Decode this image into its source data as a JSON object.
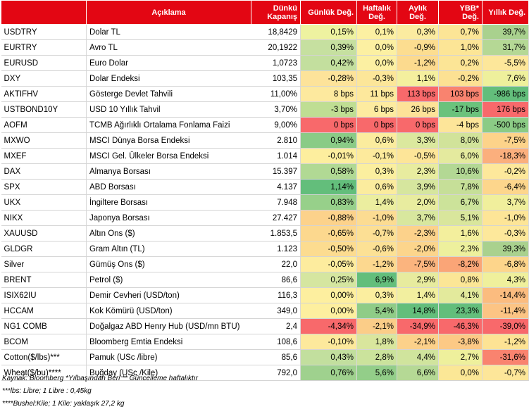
{
  "headers": {
    "code": "",
    "description": "Açıklama",
    "close_line1": "Dünkü",
    "close_line2": "Kapanış",
    "daily": "Günlük Değ.",
    "weekly_line1": "Haftalık",
    "weekly_line2": "Değ.",
    "monthly_line1": "Aylık",
    "monthly_line2": "Değ.",
    "ytd": "YBB* Değ.",
    "yearly": "Yıllık Değ."
  },
  "rows": [
    {
      "code": "USDTRY",
      "desc": "Dolar TL",
      "close": "18,8429",
      "daily": "0,15%",
      "weekly": "0,1%",
      "monthly": "0,3%",
      "ytd": "0,7%",
      "yearly": "39,7%"
    },
    {
      "code": "EURTRY",
      "desc": "Avro TL",
      "close": "20,1922",
      "daily": "0,39%",
      "weekly": "0,0%",
      "monthly": "-0,9%",
      "ytd": "1,0%",
      "yearly": "31,7%"
    },
    {
      "code": "EURUSD",
      "desc": "Euro Dolar",
      "close": "1,0723",
      "daily": "0,42%",
      "weekly": "0,0%",
      "monthly": "-1,2%",
      "ytd": "0,2%",
      "yearly": "-5,5%"
    },
    {
      "code": "DXY",
      "desc": "Dolar Endeksi",
      "close": "103,35",
      "daily": "-0,28%",
      "weekly": "-0,3%",
      "monthly": "1,1%",
      "ytd": "-0,2%",
      "yearly": "7,6%"
    },
    {
      "code": "AKTIFHV",
      "desc": "Gösterge Devlet Tahvili",
      "close": "11,00%",
      "daily": "8 bps",
      "weekly": "11 bps",
      "monthly": "113 bps",
      "ytd": "103 bps",
      "yearly": "-986 bps"
    },
    {
      "code": "USTBOND10Y",
      "desc": "USD 10 Yıllık Tahvil",
      "close": "3,70%",
      "daily": "-3 bps",
      "weekly": "6 bps",
      "monthly": "26 bps",
      "ytd": "-17 bps",
      "yearly": "176 bps"
    },
    {
      "code": "AOFM",
      "desc": "TCMB Ağırlıklı Ortalama Fonlama Faizi",
      "close": "9,00%",
      "daily": "0 bps",
      "weekly": "0 bps",
      "monthly": "0 bps",
      "ytd": "-4 bps",
      "yearly": "-500 bps"
    },
    {
      "code": "MXWO",
      "desc": "MSCI Dünya Borsa Endeksi",
      "close": "2.810",
      "daily": "0,94%",
      "weekly": "0,6%",
      "monthly": "3,3%",
      "ytd": "8,0%",
      "yearly": "-7,5%"
    },
    {
      "code": "MXEF",
      "desc": "MSCI Gel. Ülkeler Borsa Endeksi",
      "close": "1.014",
      "daily": "-0,01%",
      "weekly": "-0,1%",
      "monthly": "-0,5%",
      "ytd": "6,0%",
      "yearly": "-18,3%"
    },
    {
      "code": "DAX",
      "desc": "Almanya Borsası",
      "close": "15.397",
      "daily": "0,58%",
      "weekly": "0,3%",
      "monthly": "2,3%",
      "ytd": "10,6%",
      "yearly": "-0,2%"
    },
    {
      "code": "SPX",
      "desc": "ABD Borsası",
      "close": "4.137",
      "daily": "1,14%",
      "weekly": "0,6%",
      "monthly": "3,9%",
      "ytd": "7,8%",
      "yearly": "-6,4%"
    },
    {
      "code": "UKX",
      "desc": "İngiltere Borsası",
      "close": "7.948",
      "daily": "0,83%",
      "weekly": "1,4%",
      "monthly": "2,0%",
      "ytd": "6,7%",
      "yearly": "3,7%"
    },
    {
      "code": "NIKX",
      "desc": "Japonya Borsası",
      "close": "27.427",
      "daily": "-0,88%",
      "weekly": "-1,0%",
      "monthly": "3,7%",
      "ytd": "5,1%",
      "yearly": "-1,0%"
    },
    {
      "code": "XAUUSD",
      "desc": "Altın Ons ($)",
      "close": "1.853,5",
      "daily": "-0,65%",
      "weekly": "-0,7%",
      "monthly": "-2,3%",
      "ytd": "1,6%",
      "yearly": "-0,3%"
    },
    {
      "code": "GLDGR",
      "desc": "Gram Altın (TL)",
      "close": "1.123",
      "daily": "-0,50%",
      "weekly": "-0,6%",
      "monthly": "-2,0%",
      "ytd": "2,3%",
      "yearly": "39,3%"
    },
    {
      "code": "Silver",
      "desc": "Gümüş Ons ($)",
      "close": "22,0",
      "daily": "-0,05%",
      "weekly": "-1,2%",
      "monthly": "-7,5%",
      "ytd": "-8,2%",
      "yearly": "-6,8%"
    },
    {
      "code": "BRENT",
      "desc": "Petrol ($)",
      "close": "86,6",
      "daily": "0,25%",
      "weekly": "6,9%",
      "monthly": "2,9%",
      "ytd": "0,8%",
      "yearly": "4,3%"
    },
    {
      "code": "ISIX62IU",
      "desc": "Demir Cevheri (USD/ton)",
      "close": "116,3",
      "daily": "0,00%",
      "weekly": "0,3%",
      "monthly": "1,4%",
      "ytd": "4,1%",
      "yearly": "-14,4%"
    },
    {
      "code": "HCCAM",
      "desc": "Kok Kömürü (USD/ton)",
      "close": "349,0",
      "daily": "0,00%",
      "weekly": "5,4%",
      "monthly": "14,8%",
      "ytd": "23,3%",
      "yearly": "-11,4%"
    },
    {
      "code": "NG1 COMB",
      "desc": "Doğalgaz ABD Henry Hub (USD/mn BTU)",
      "close": "2,4",
      "daily": "-4,34%",
      "weekly": "-2,1%",
      "monthly": "-34,9%",
      "ytd": "-46,3%",
      "yearly": "-39,0%"
    },
    {
      "code": "BCOM",
      "desc": "Bloomberg Emtia Endeksi",
      "close": "108,6",
      "daily": "-0,10%",
      "weekly": "1,8%",
      "monthly": "-2,1%",
      "ytd": "-3,8%",
      "yearly": "-1,2%"
    },
    {
      "code": "Cotton($/lbs)***",
      "desc": "Pamuk (USc /libre)",
      "close": "85,6",
      "daily": "0,43%",
      "weekly": "2,8%",
      "monthly": "4,4%",
      "ytd": "2,7%",
      "yearly": "-31,6%"
    },
    {
      "code": "Wheat($/bu)****",
      "desc": "Buğday (USc /Kile)",
      "close": "792,0",
      "daily": "0,76%",
      "weekly": "5,6%",
      "monthly": "6,6%",
      "ytd": "0,0%",
      "yearly": "-0,7%"
    }
  ],
  "colors": {
    "header": "#e30613",
    "strong_green": "#63be7b",
    "light_green": "#c6e0b4",
    "yellow": "#ffeb84",
    "orange": "#fbbf7b",
    "red": "#f8696b"
  },
  "notes": [
    "Kaynak: Bloomberg *Yılbaşından Beri  ** Güncelleme haftalıktır",
    "***lbs: Libre; 1 Libre : 0,45kg",
    "****Bushel:Kile; 1 Kile: yaklaşık 27,2 kg"
  ]
}
